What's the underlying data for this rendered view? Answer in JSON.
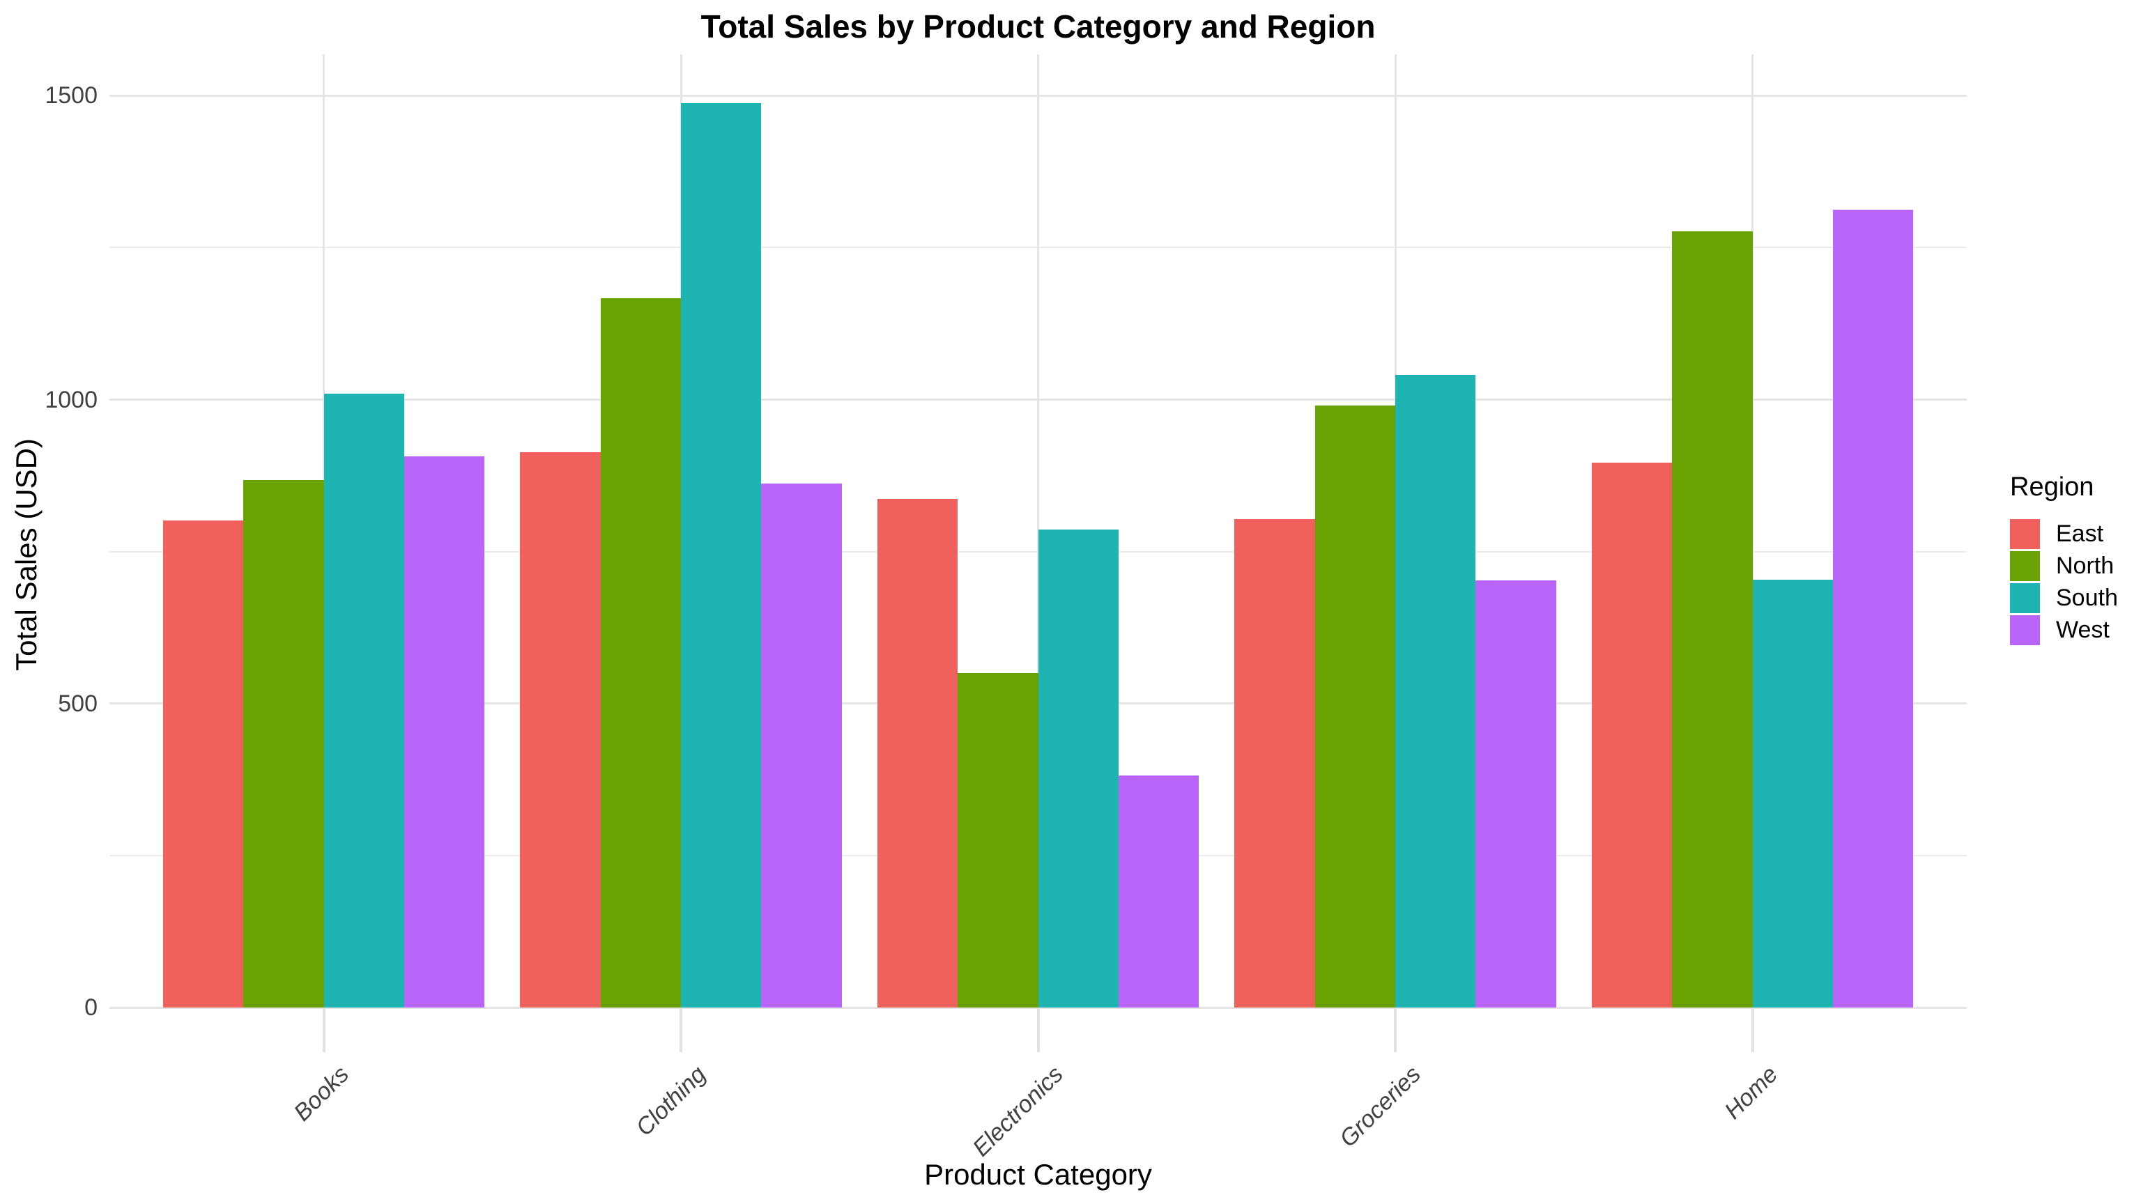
{
  "chart_data": {
    "type": "bar",
    "title": "Total Sales by Product Category and Region",
    "xlabel": "Product Category",
    "ylabel": "Total Sales (USD)",
    "legend_title": "Region",
    "legend_position": "right",
    "categories": [
      "Books",
      "Clothing",
      "Electronics",
      "Groceries",
      "Home"
    ],
    "series": [
      {
        "name": "East",
        "color": "#F0605D",
        "values": [
          801,
          914,
          837,
          803,
          896
        ]
      },
      {
        "name": "North",
        "color": "#68A303",
        "values": [
          868,
          1167,
          550,
          990,
          1277
        ]
      },
      {
        "name": "South",
        "color": "#1DB4B2",
        "values": [
          1010,
          1488,
          786,
          1041,
          704
        ]
      },
      {
        "name": "West",
        "color": "#B965FA",
        "values": [
          907,
          862,
          382,
          703,
          1312
        ]
      }
    ],
    "y_ticks": [
      0,
      500,
      1000,
      1500
    ],
    "y_minor_ticks": [
      250,
      750,
      1250
    ],
    "ylim": [
      0,
      1568
    ],
    "grid": true
  },
  "colors": {
    "background": "#FFFFFF",
    "grid_major": "#E5E5E5",
    "grid_minor": "#EBEBEB",
    "tick": "#E2E2E2",
    "tick_label": "#404040",
    "text": "#000000"
  }
}
